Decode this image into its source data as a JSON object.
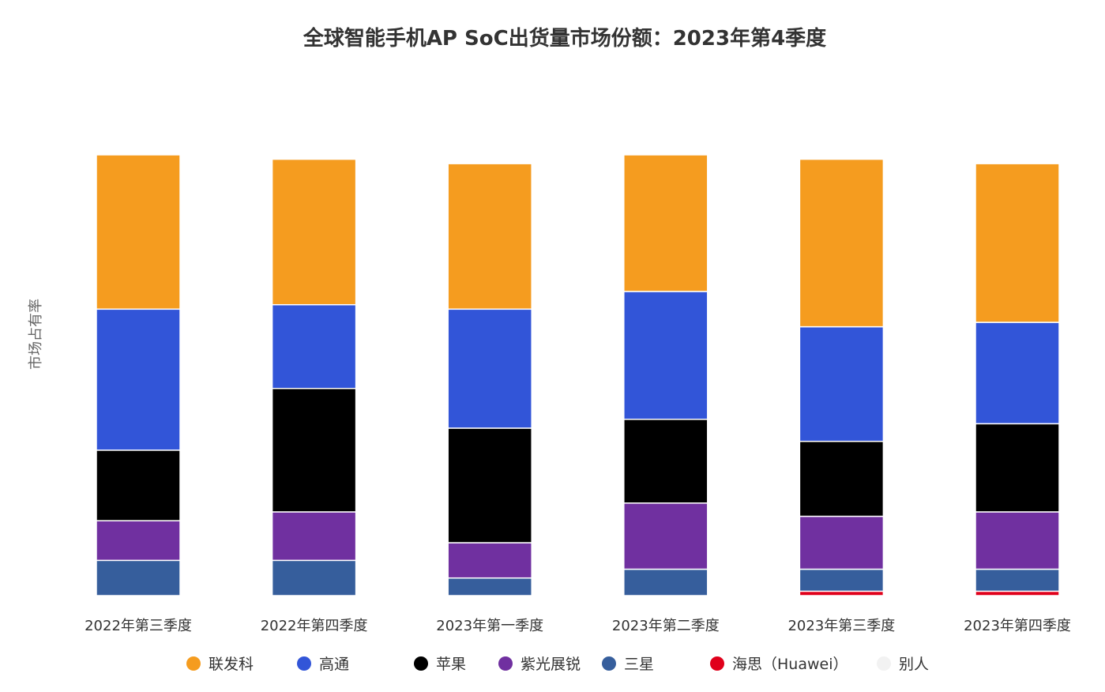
{
  "chart_data": {
    "type": "bar",
    "stacked": true,
    "title": "全球智能手机AP SoC出货量市场份额：2023年第4季度",
    "ylabel": "市场占有率",
    "xlabel": "",
    "categories": [
      "2022年第三季度",
      "2022年第四季度",
      "2023年第一季度",
      "2023年第二季度",
      "2023年第三季度",
      "2023年第四季度"
    ],
    "series": [
      {
        "name": "别人",
        "color": "#f2f2f2",
        "values": [
          0,
          0,
          0,
          0,
          0,
          0
        ]
      },
      {
        "name": "海思（Huawei）",
        "color": "#e0001b",
        "values": [
          0,
          0,
          0,
          0,
          1,
          1
        ]
      },
      {
        "name": "三星",
        "color": "#365e9c",
        "values": [
          8,
          8,
          4,
          6,
          5,
          5
        ]
      },
      {
        "name": "紫光展锐",
        "color": "#7030a0",
        "values": [
          9,
          11,
          8,
          15,
          12,
          13
        ]
      },
      {
        "name": "苹果",
        "color": "#000000",
        "values": [
          16,
          28,
          26,
          19,
          17,
          20
        ]
      },
      {
        "name": "高通",
        "color": "#3255d8",
        "values": [
          32,
          19,
          27,
          29,
          26,
          23
        ]
      },
      {
        "name": "联发科",
        "color": "#f59c1f",
        "values": [
          35,
          33,
          33,
          31,
          38,
          36
        ]
      }
    ],
    "legend_order": [
      "联发科",
      "高通",
      "苹果",
      "紫光展锐",
      "三星",
      "海思（Huawei）",
      "别人"
    ],
    "legend_position": "bottom",
    "grid": false
  }
}
